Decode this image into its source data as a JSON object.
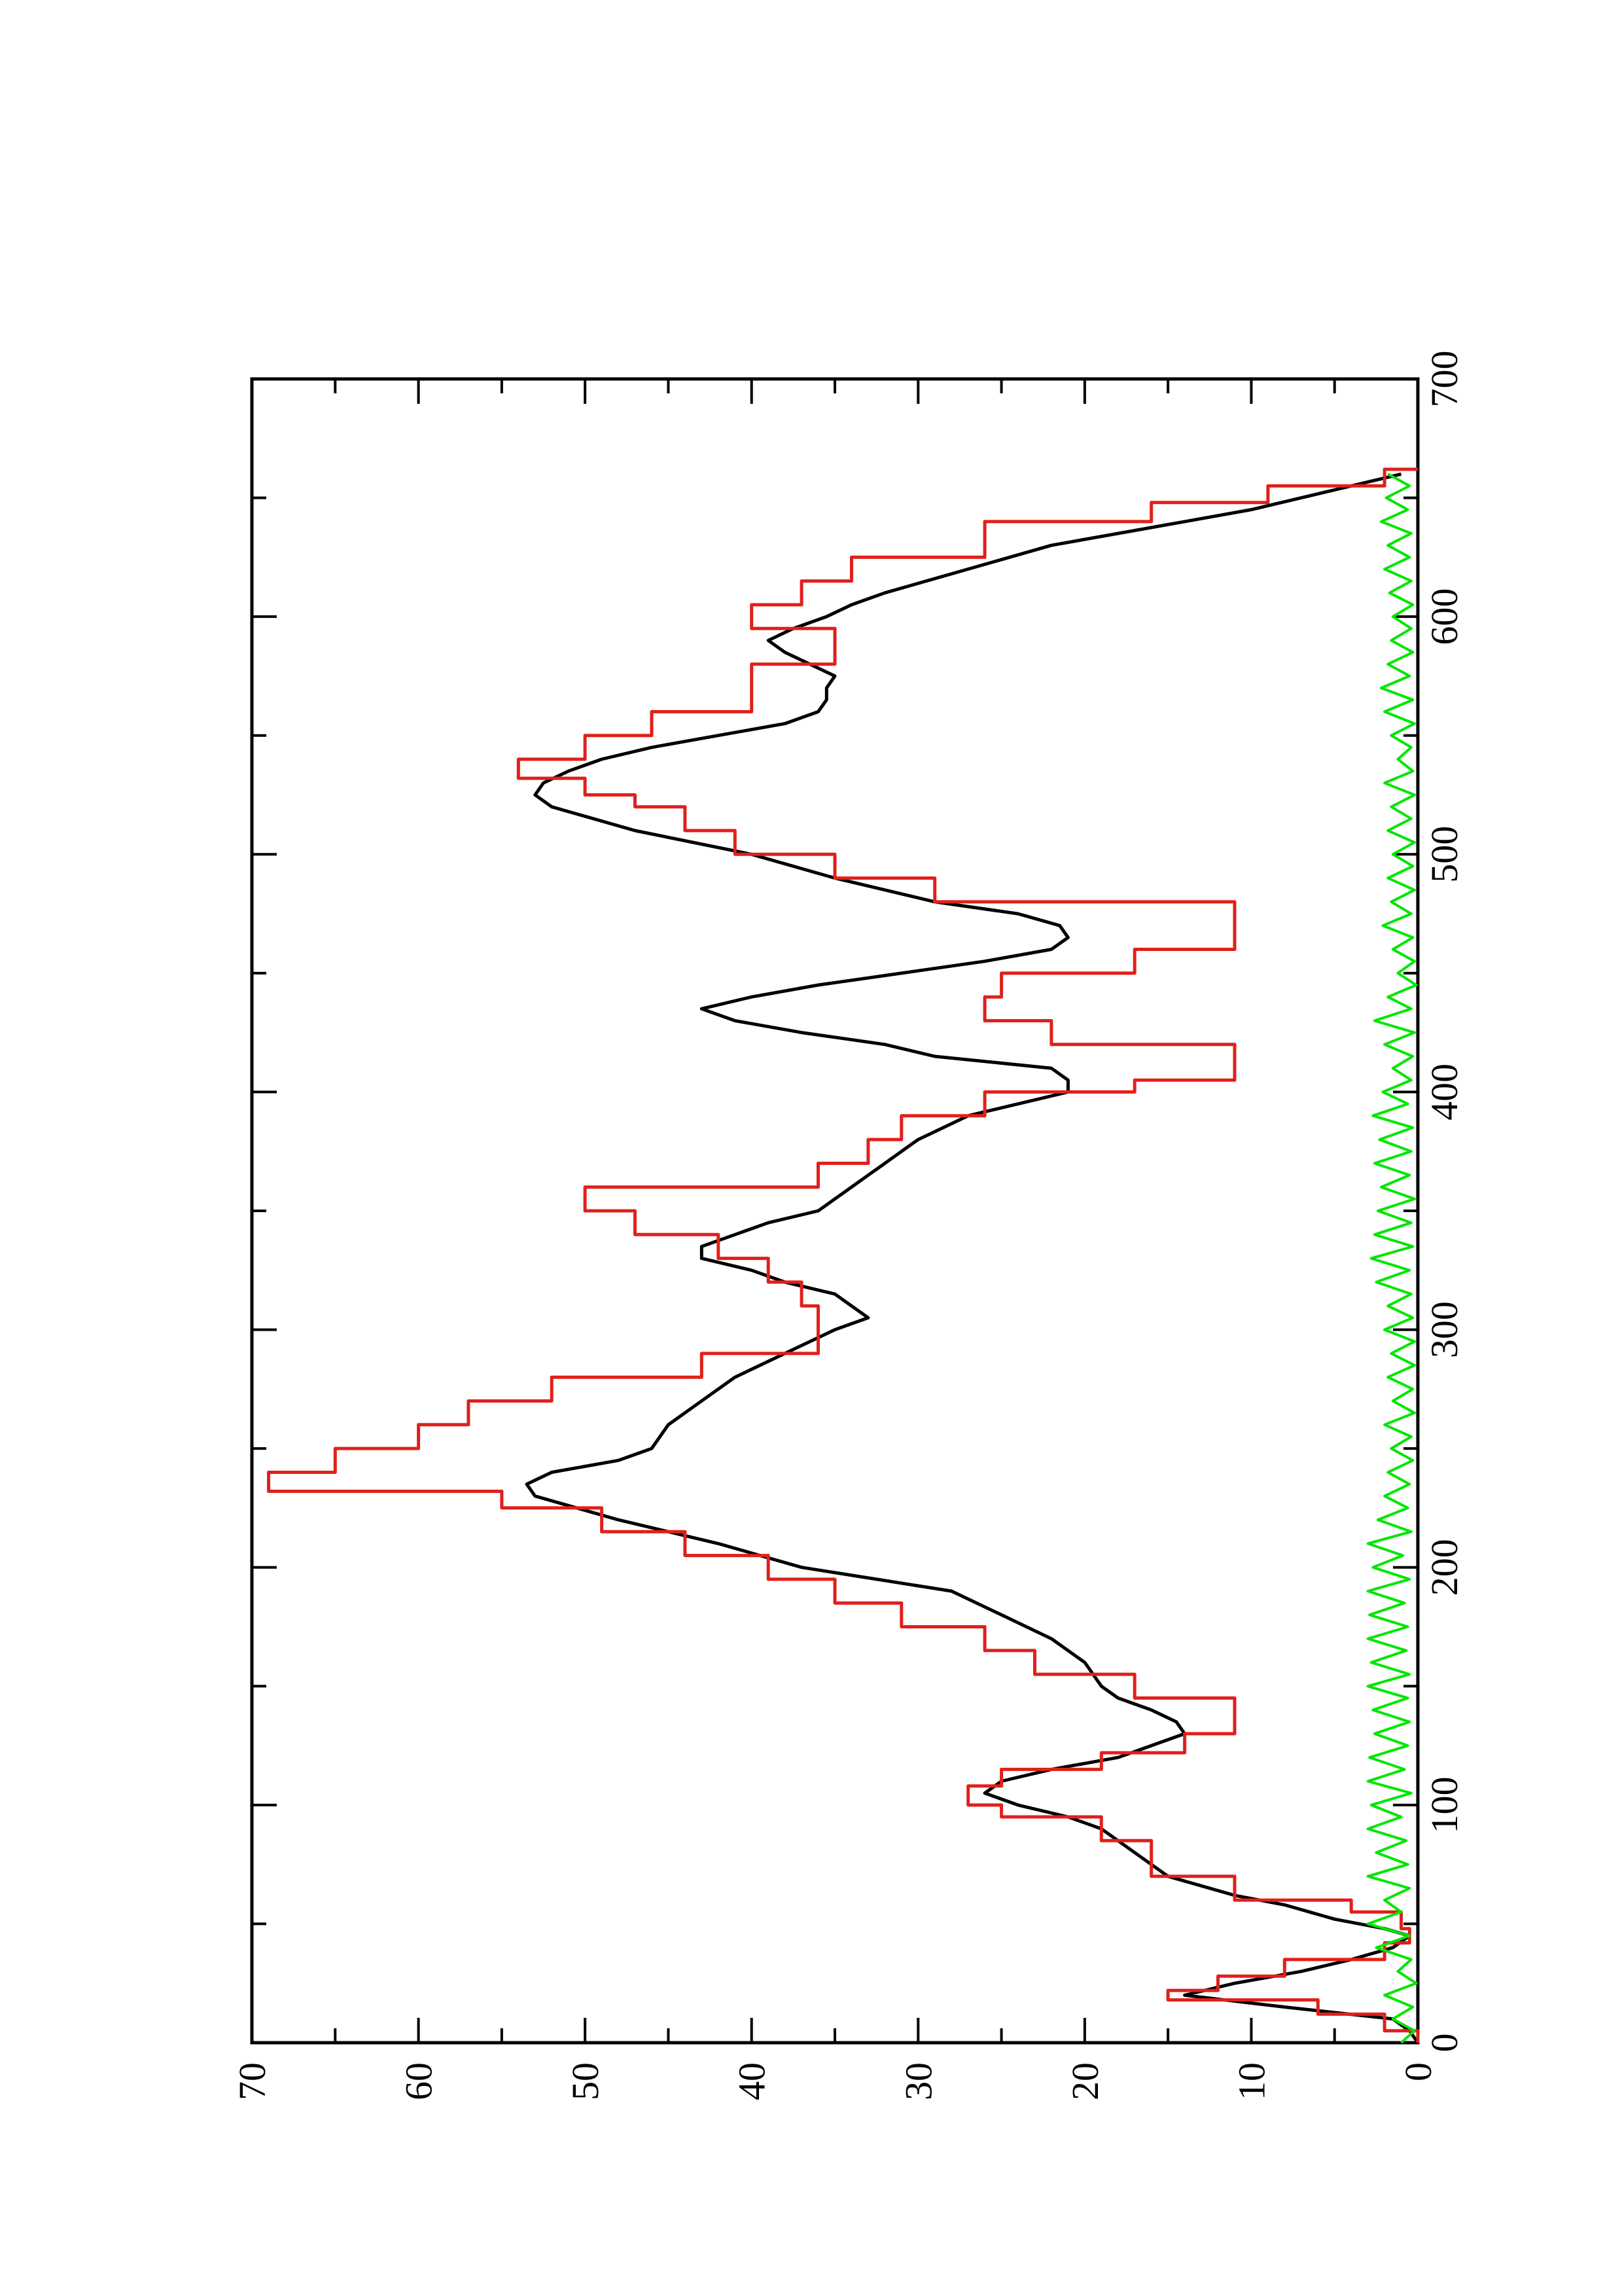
{
  "chart_data": {
    "type": "line",
    "title": "",
    "xlabel": "",
    "ylabel": "",
    "xlim": [
      0,
      700
    ],
    "ylim": [
      0,
      70
    ],
    "x_ticks": [
      0,
      100,
      200,
      300,
      400,
      500,
      600,
      700
    ],
    "x_tick_labels": [
      "0",
      "100",
      "200",
      "300",
      "400",
      "500",
      "600",
      "700"
    ],
    "y_ticks": [
      0,
      10,
      20,
      30,
      40,
      50,
      60,
      70
    ],
    "y_tick_labels": [
      "0",
      "10",
      "20",
      "30",
      "40",
      "50",
      "60",
      "70"
    ],
    "grid": false,
    "legend": "none",
    "orientation": "rotated 90° counter-clockwise on the page",
    "series": [
      {
        "color": "#000000",
        "style": "line",
        "points": [
          [
            0,
            0
          ],
          [
            5,
            0.5
          ],
          [
            10,
            1.5
          ],
          [
            15,
            8
          ],
          [
            20,
            14
          ],
          [
            25,
            11
          ],
          [
            30,
            7
          ],
          [
            35,
            4
          ],
          [
            40,
            1.5
          ],
          [
            45,
            0.5
          ],
          [
            48,
            2
          ],
          [
            52,
            5
          ],
          [
            58,
            8
          ],
          [
            62,
            11
          ],
          [
            70,
            15
          ],
          [
            80,
            17
          ],
          [
            90,
            19
          ],
          [
            95,
            21
          ],
          [
            100,
            24
          ],
          [
            105,
            26
          ],
          [
            110,
            25
          ],
          [
            115,
            22
          ],
          [
            120,
            18
          ],
          [
            125,
            16
          ],
          [
            130,
            14
          ],
          [
            135,
            14.5
          ],
          [
            140,
            16
          ],
          [
            145,
            18
          ],
          [
            150,
            19
          ],
          [
            160,
            20
          ],
          [
            170,
            22
          ],
          [
            180,
            25
          ],
          [
            190,
            28
          ],
          [
            200,
            37
          ],
          [
            210,
            42
          ],
          [
            220,
            48
          ],
          [
            230,
            53
          ],
          [
            235,
            53.5
          ],
          [
            240,
            52
          ],
          [
            245,
            48
          ],
          [
            250,
            46
          ],
          [
            260,
            45
          ],
          [
            270,
            43
          ],
          [
            280,
            41
          ],
          [
            290,
            38
          ],
          [
            300,
            35
          ],
          [
            305,
            33
          ],
          [
            310,
            34
          ],
          [
            315,
            35
          ],
          [
            320,
            38
          ],
          [
            325,
            40
          ],
          [
            330,
            43
          ],
          [
            335,
            43
          ],
          [
            340,
            41
          ],
          [
            345,
            39
          ],
          [
            350,
            36
          ],
          [
            355,
            35
          ],
          [
            360,
            34
          ],
          [
            365,
            33
          ],
          [
            370,
            32
          ],
          [
            375,
            31
          ],
          [
            380,
            30
          ],
          [
            390,
            27
          ],
          [
            400,
            21
          ],
          [
            405,
            21
          ],
          [
            410,
            22
          ],
          [
            415,
            29
          ],
          [
            420,
            32
          ],
          [
            425,
            37
          ],
          [
            430,
            41
          ],
          [
            435,
            43
          ],
          [
            440,
            40
          ],
          [
            445,
            36
          ],
          [
            450,
            31
          ],
          [
            455,
            26
          ],
          [
            460,
            22
          ],
          [
            465,
            21
          ],
          [
            470,
            21.5
          ],
          [
            475,
            24
          ],
          [
            480,
            29
          ],
          [
            490,
            35
          ],
          [
            500,
            40
          ],
          [
            510,
            47
          ],
          [
            520,
            52
          ],
          [
            525,
            53
          ],
          [
            530,
            52.5
          ],
          [
            535,
            51
          ],
          [
            540,
            49
          ],
          [
            545,
            46
          ],
          [
            550,
            42
          ],
          [
            555,
            38
          ],
          [
            560,
            36
          ],
          [
            565,
            35.5
          ],
          [
            570,
            35.5
          ],
          [
            575,
            35
          ],
          [
            580,
            36.5
          ],
          [
            585,
            38
          ],
          [
            590,
            39
          ],
          [
            595,
            37.5
          ],
          [
            600,
            35.5
          ],
          [
            605,
            34
          ],
          [
            610,
            32
          ],
          [
            620,
            27
          ],
          [
            630,
            22
          ],
          [
            640,
            14
          ],
          [
            645,
            10
          ],
          [
            650,
            7
          ],
          [
            655,
            4
          ],
          [
            660,
            1
          ]
        ]
      },
      {
        "color": "#e0201b",
        "style": "step",
        "points": [
          [
            0,
            0
          ],
          [
            5,
            2
          ],
          [
            12,
            6
          ],
          [
            18,
            15
          ],
          [
            22,
            12
          ],
          [
            28,
            8
          ],
          [
            35,
            2
          ],
          [
            42,
            0.5
          ],
          [
            48,
            1
          ],
          [
            55,
            4
          ],
          [
            60,
            11
          ],
          [
            70,
            16
          ],
          [
            85,
            19
          ],
          [
            95,
            25
          ],
          [
            100,
            27
          ],
          [
            108,
            25
          ],
          [
            115,
            19
          ],
          [
            122,
            14
          ],
          [
            130,
            11
          ],
          [
            138,
            11
          ],
          [
            145,
            17
          ],
          [
            155,
            23
          ],
          [
            165,
            26
          ],
          [
            175,
            31
          ],
          [
            185,
            35
          ],
          [
            195,
            39
          ],
          [
            205,
            44
          ],
          [
            215,
            49
          ],
          [
            225,
            55
          ],
          [
            232,
            69
          ],
          [
            240,
            65
          ],
          [
            250,
            60
          ],
          [
            260,
            57
          ],
          [
            270,
            52
          ],
          [
            280,
            43
          ],
          [
            290,
            36
          ],
          [
            300,
            36
          ],
          [
            310,
            37
          ],
          [
            320,
            39
          ],
          [
            330,
            42
          ],
          [
            340,
            47
          ],
          [
            350,
            50
          ],
          [
            360,
            36
          ],
          [
            370,
            33
          ],
          [
            380,
            31
          ],
          [
            390,
            26
          ],
          [
            400,
            17
          ],
          [
            405,
            11
          ],
          [
            415,
            11
          ],
          [
            420,
            22
          ],
          [
            430,
            26
          ],
          [
            440,
            25
          ],
          [
            450,
            17
          ],
          [
            460,
            11
          ],
          [
            470,
            11
          ],
          [
            480,
            29
          ],
          [
            490,
            35
          ],
          [
            500,
            41
          ],
          [
            510,
            44
          ],
          [
            520,
            47
          ],
          [
            525,
            50
          ],
          [
            532,
            54
          ],
          [
            540,
            50
          ],
          [
            550,
            46
          ],
          [
            560,
            40
          ],
          [
            572,
            40
          ],
          [
            580,
            35
          ],
          [
            590,
            35
          ],
          [
            595,
            40
          ],
          [
            605,
            37
          ],
          [
            615,
            34
          ],
          [
            625,
            26
          ],
          [
            640,
            16
          ],
          [
            648,
            9
          ],
          [
            655,
            2
          ],
          [
            662,
            0
          ]
        ]
      },
      {
        "color": "#00e600",
        "style": "noise",
        "points": [
          [
            0,
            1
          ],
          [
            5,
            0.2
          ],
          [
            10,
            1.5
          ],
          [
            15,
            0.3
          ],
          [
            20,
            2
          ],
          [
            25,
            0.1
          ],
          [
            30,
            1.2
          ],
          [
            35,
            0.4
          ],
          [
            40,
            2.5
          ],
          [
            45,
            0.5
          ],
          [
            50,
            3
          ],
          [
            55,
            1
          ],
          [
            60,
            2
          ],
          [
            65,
            0.5
          ],
          [
            70,
            3
          ],
          [
            75,
            0.6
          ],
          [
            80,
            2.5
          ],
          [
            85,
            0.7
          ],
          [
            90,
            3
          ],
          [
            95,
            1
          ],
          [
            100,
            2.8
          ],
          [
            105,
            0.4
          ],
          [
            110,
            3
          ],
          [
            115,
            0.8
          ],
          [
            120,
            2.9
          ],
          [
            125,
            0.6
          ],
          [
            130,
            2.6
          ],
          [
            135,
            0.5
          ],
          [
            140,
            2.7
          ],
          [
            145,
            0.6
          ],
          [
            150,
            3
          ],
          [
            155,
            0.5
          ],
          [
            160,
            2.8
          ],
          [
            165,
            0.7
          ],
          [
            170,
            3
          ],
          [
            175,
            0.6
          ],
          [
            180,
            2.9
          ],
          [
            185,
            0.8
          ],
          [
            190,
            3
          ],
          [
            195,
            0.5
          ],
          [
            200,
            2.7
          ],
          [
            205,
            0.9
          ],
          [
            210,
            3
          ],
          [
            215,
            0.4
          ],
          [
            220,
            2.4
          ],
          [
            225,
            0.6
          ],
          [
            230,
            2
          ],
          [
            235,
            0.5
          ],
          [
            240,
            1.8
          ],
          [
            245,
            0.3
          ],
          [
            250,
            1.6
          ],
          [
            255,
            0.4
          ],
          [
            260,
            2
          ],
          [
            265,
            0.2
          ],
          [
            270,
            1.5
          ],
          [
            275,
            0.3
          ],
          [
            280,
            1.8
          ],
          [
            285,
            0.2
          ],
          [
            290,
            1.6
          ],
          [
            295,
            0.2
          ],
          [
            300,
            2
          ],
          [
            305,
            0.3
          ],
          [
            310,
            1.8
          ],
          [
            315,
            0.4
          ],
          [
            320,
            2.5
          ],
          [
            325,
            0.5
          ],
          [
            330,
            2.8
          ],
          [
            335,
            0.3
          ],
          [
            340,
            2.6
          ],
          [
            345,
            0.4
          ],
          [
            350,
            2.4
          ],
          [
            355,
            0.2
          ],
          [
            360,
            2.2
          ],
          [
            365,
            0.5
          ],
          [
            370,
            2.6
          ],
          [
            375,
            0.4
          ],
          [
            380,
            2.3
          ],
          [
            385,
            0.3
          ],
          [
            390,
            2.7
          ],
          [
            395,
            0.6
          ],
          [
            400,
            2.1
          ],
          [
            405,
            0.4
          ],
          [
            410,
            1.5
          ],
          [
            415,
            0.3
          ],
          [
            420,
            2
          ],
          [
            425,
            0.2
          ],
          [
            430,
            2.6
          ],
          [
            435,
            0.4
          ],
          [
            440,
            1.8
          ],
          [
            445,
            0.1
          ],
          [
            450,
            1.2
          ],
          [
            455,
            0.2
          ],
          [
            460,
            1.5
          ],
          [
            465,
            0.3
          ],
          [
            470,
            2.1
          ],
          [
            475,
            0.4
          ],
          [
            480,
            1.6
          ],
          [
            485,
            0.2
          ],
          [
            490,
            1.8
          ],
          [
            495,
            0.3
          ],
          [
            500,
            1.5
          ],
          [
            505,
            0.2
          ],
          [
            510,
            1.8
          ],
          [
            515,
            0.4
          ],
          [
            520,
            1.6
          ],
          [
            525,
            0.2
          ],
          [
            530,
            2
          ],
          [
            535,
            0.3
          ],
          [
            540,
            1.2
          ],
          [
            545,
            0.4
          ],
          [
            550,
            1.6
          ],
          [
            555,
            0.2
          ],
          [
            560,
            2
          ],
          [
            565,
            0.3
          ],
          [
            570,
            2.2
          ],
          [
            575,
            0.5
          ],
          [
            580,
            1.8
          ],
          [
            585,
            0.3
          ],
          [
            590,
            1.6
          ],
          [
            595,
            0.4
          ],
          [
            600,
            1.5
          ],
          [
            605,
            0.3
          ],
          [
            610,
            1.7
          ],
          [
            615,
            0.4
          ],
          [
            620,
            2
          ],
          [
            625,
            0.5
          ],
          [
            630,
            1.8
          ],
          [
            635,
            0.4
          ],
          [
            640,
            2.2
          ],
          [
            645,
            0.6
          ],
          [
            650,
            1.9
          ],
          [
            655,
            0.5
          ],
          [
            660,
            1.8
          ]
        ]
      }
    ]
  }
}
